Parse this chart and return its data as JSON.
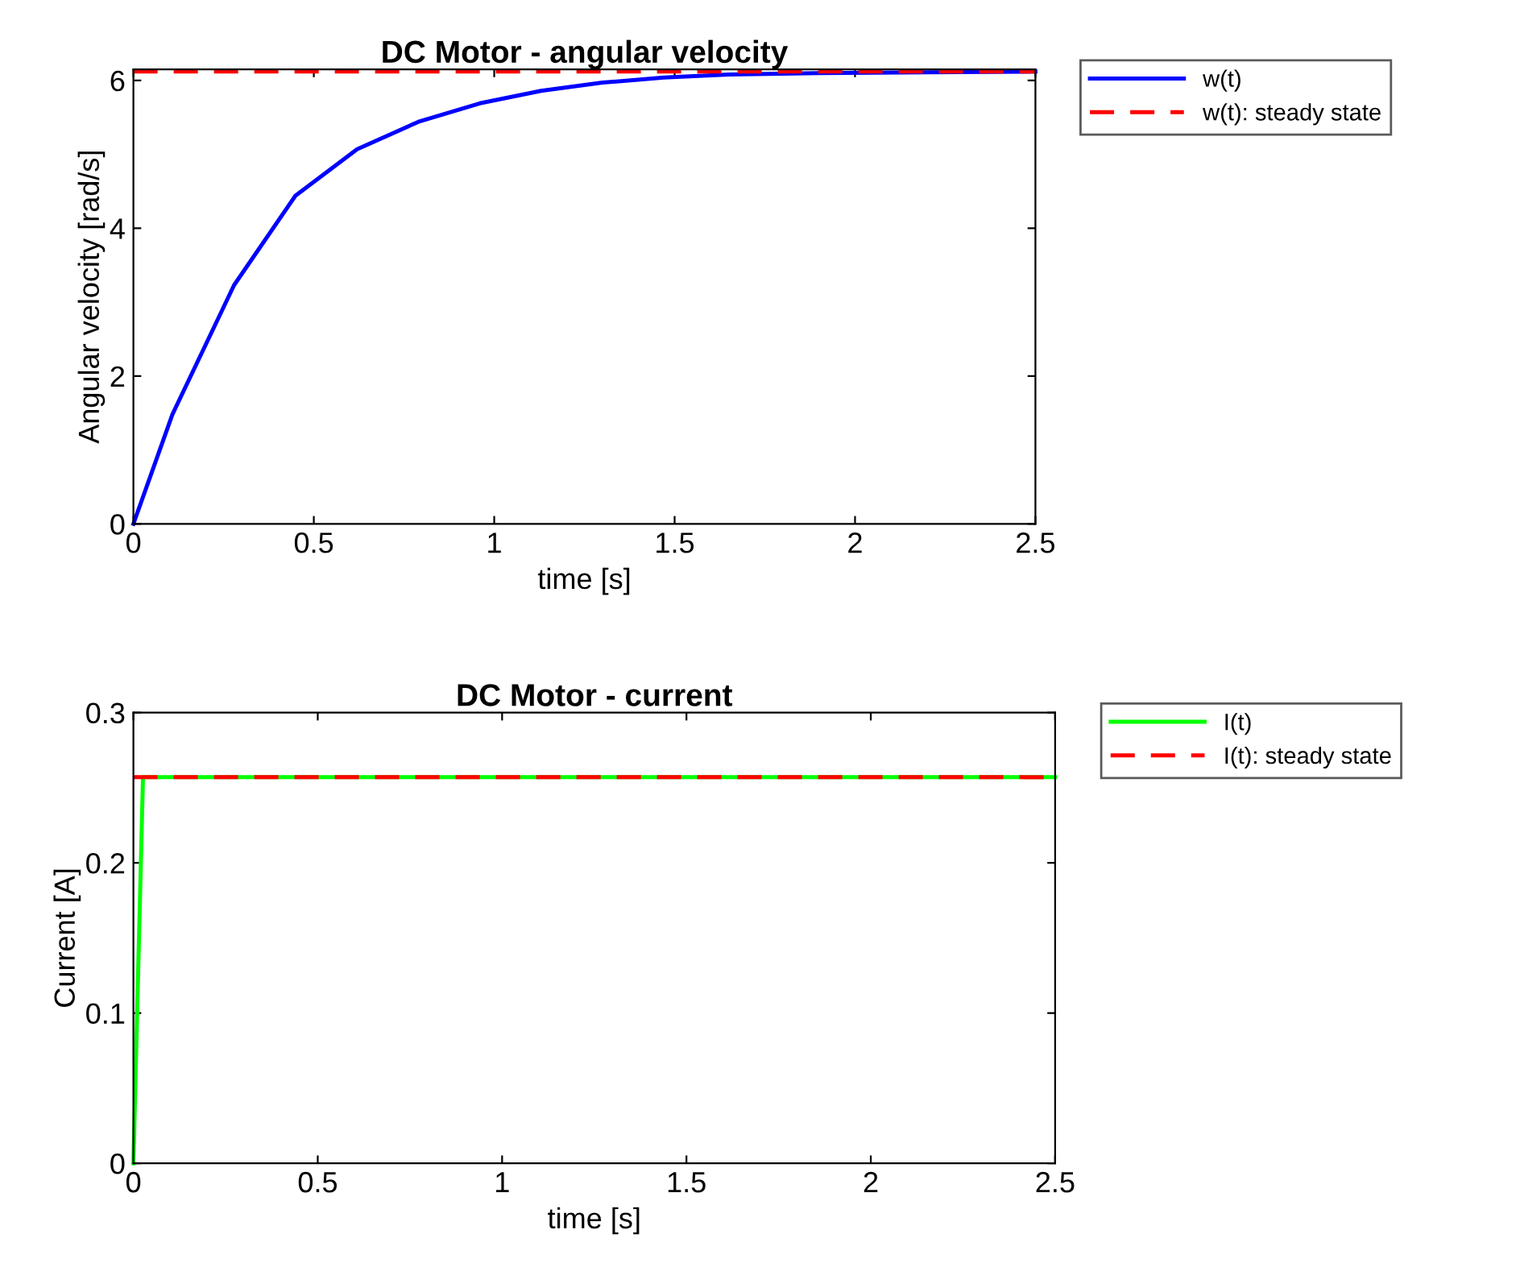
{
  "chart_data": [
    {
      "type": "line",
      "title": "DC Motor - angular velocity",
      "xlabel": "time [s]",
      "ylabel": "Angular velocity [rad/s]",
      "xlim": [
        0,
        2.5
      ],
      "xticks": [
        0,
        0.5,
        1,
        1.5,
        2,
        2.5
      ],
      "ylim": [
        0,
        6.15
      ],
      "yticks": [
        0,
        2,
        4,
        6
      ],
      "grid": false,
      "legend": "right",
      "marker": "none",
      "series": [
        {
          "name": "w(t)",
          "color": "#0000ff",
          "line_style": "solid",
          "x": [
            0,
            0.108,
            0.279,
            0.449,
            0.62,
            0.79,
            0.96,
            1.13,
            1.3,
            1.47,
            1.65,
            1.9,
            2.2,
            2.5
          ],
          "values": [
            0,
            1.48,
            3.23,
            4.44,
            5.07,
            5.44,
            5.69,
            5.86,
            5.97,
            6.04,
            6.08,
            6.1,
            6.11,
            6.12
          ]
        },
        {
          "name": "w(t): steady state",
          "color": "#ff0000",
          "line_style": "dashed",
          "x": [
            0,
            2.5
          ],
          "values": [
            6.12,
            6.12
          ]
        }
      ]
    },
    {
      "type": "line",
      "title": "DC Motor - current",
      "xlabel": "time [s]",
      "ylabel": "Current [A]",
      "xlim": [
        0,
        2.5
      ],
      "xticks": [
        0,
        0.5,
        1,
        1.5,
        2,
        2.5
      ],
      "ylim": [
        0,
        0.3
      ],
      "yticks": [
        0,
        0.1,
        0.2,
        0.3
      ],
      "grid": false,
      "legend": "right",
      "marker": "none",
      "series": [
        {
          "name": "I(t)",
          "color": "#00ff00",
          "line_style": "solid",
          "x": [
            0,
            0.026,
            2.5
          ],
          "values": [
            0,
            0.257,
            0.257
          ]
        },
        {
          "name": "I(t): steady state",
          "color": "#ff0000",
          "line_style": "dashed",
          "x": [
            0,
            2.5
          ],
          "values": [
            0.257,
            0.257
          ]
        }
      ]
    }
  ]
}
